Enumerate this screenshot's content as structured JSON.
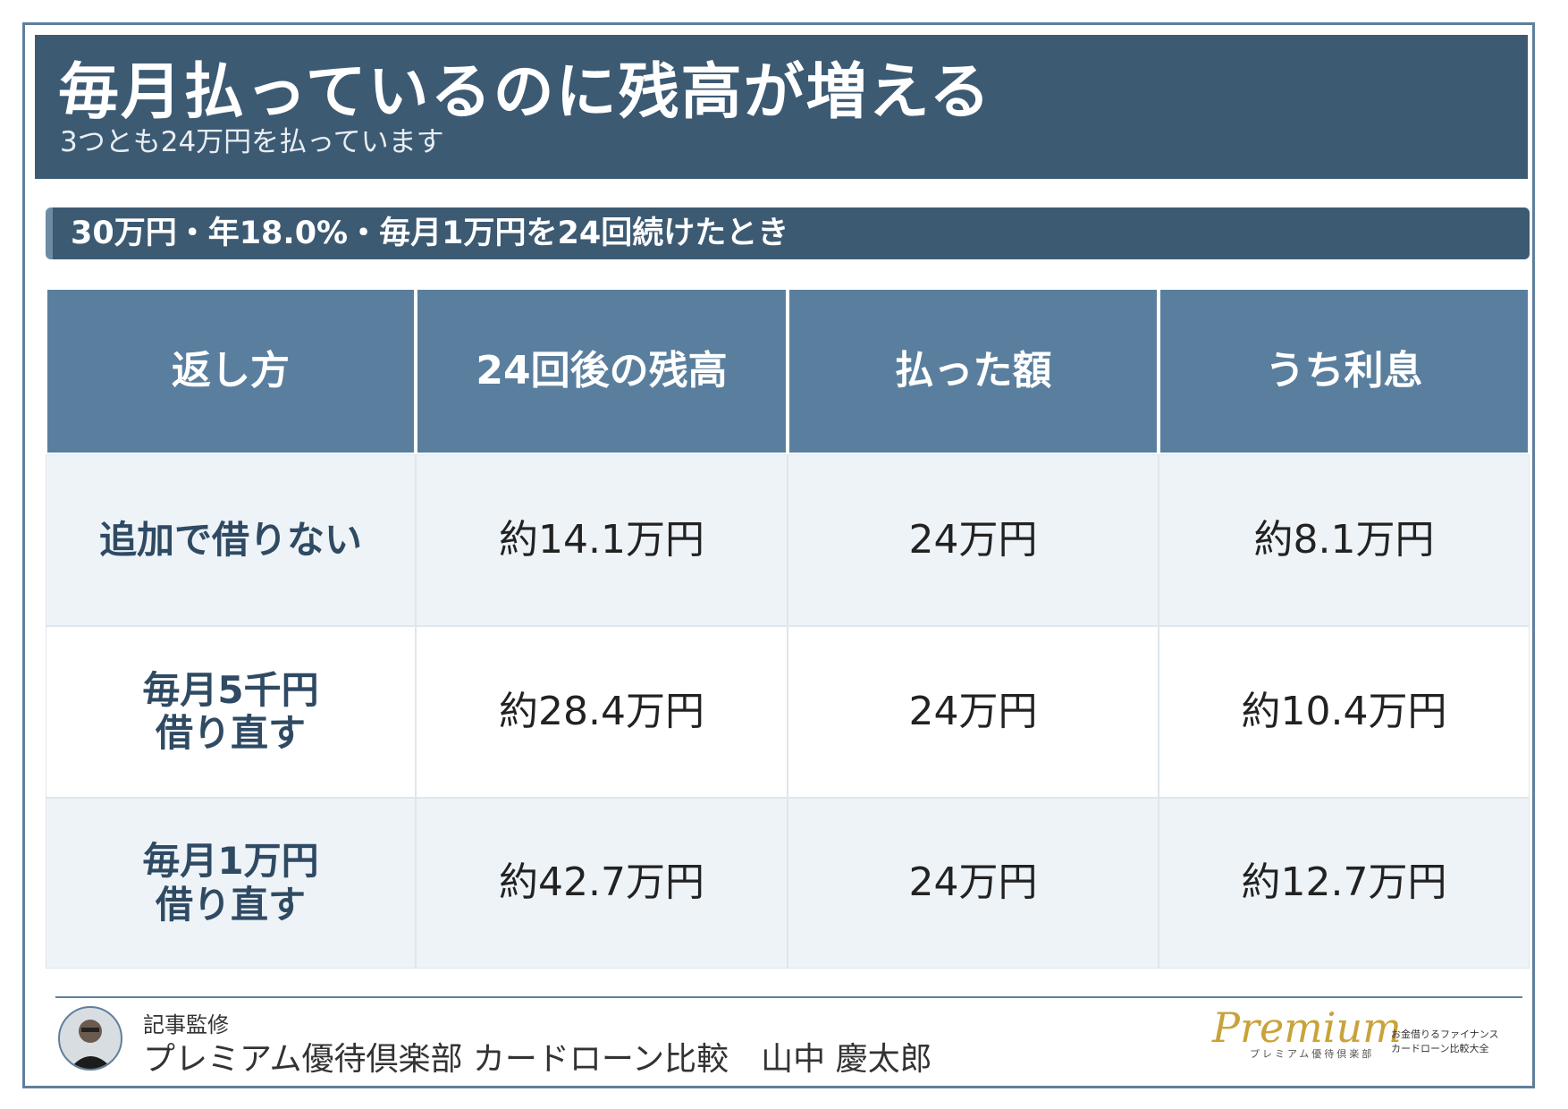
{
  "header": {
    "title": "毎月払っているのに残高が増える",
    "subtitle": "3つとも24万円を払っています"
  },
  "condition": "30万円・年18.0%・毎月1万円を24回続けたとき",
  "table": {
    "headers": [
      "返し方",
      "24回後の残高",
      "払った額",
      "うち利息"
    ],
    "rows": [
      [
        "追加で借りない",
        "約14.1万円",
        "24万円",
        "約8.1万円"
      ],
      [
        "毎月5千円\n借り直す",
        "約28.4万円",
        "24万円",
        "約10.4万円"
      ],
      [
        "毎月1万円\n借り直す",
        "約42.7万円",
        "24万円",
        "約12.7万円"
      ]
    ]
  },
  "footer": {
    "label": "記事監修",
    "author": "プレミアム優待倶楽部 カードローン比較　山中 慶太郎"
  },
  "logo": {
    "brand": "Premium",
    "brand_sub": "プレミアム優待倶楽部",
    "line1": "お金借りるファイナンス",
    "line2": "カードローン比較大全"
  }
}
